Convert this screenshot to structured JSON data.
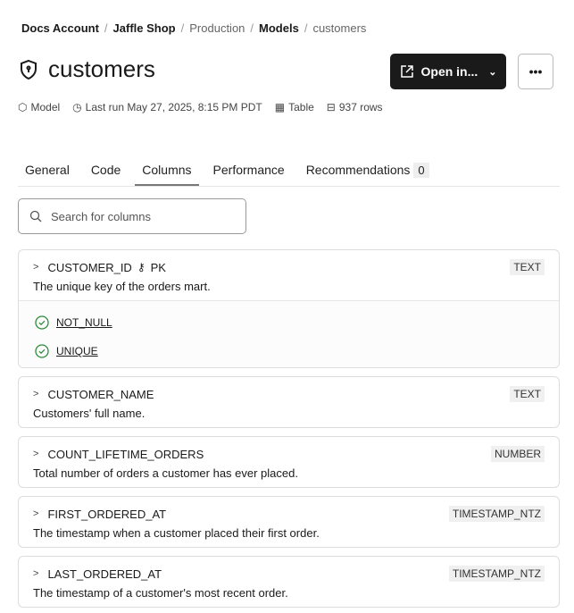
{
  "breadcrumb": [
    "Docs Account",
    "Jaffle Shop",
    "Production",
    "Models",
    "customers"
  ],
  "title": "customers",
  "open_button": "Open in...",
  "more_button": "•••",
  "meta": {
    "type": "Model",
    "last_run": "Last run May 27, 2025, 8:15 PM PDT",
    "materialization": "Table",
    "rows": "937 rows"
  },
  "tabs": [
    {
      "label": "General"
    },
    {
      "label": "Code"
    },
    {
      "label": "Columns",
      "active": true
    },
    {
      "label": "Performance"
    },
    {
      "label": "Recommendations",
      "badge": "0"
    }
  ],
  "search": {
    "placeholder": "Search for columns"
  },
  "columns": [
    {
      "name": "CUSTOMER_ID",
      "pk": "PK",
      "type": "TEXT",
      "description": "The unique key of the orders mart.",
      "tests": [
        "NOT_NULL",
        "UNIQUE"
      ]
    },
    {
      "name": "CUSTOMER_NAME",
      "type": "TEXT",
      "description": "Customers' full name."
    },
    {
      "name": "COUNT_LIFETIME_ORDERS",
      "type": "NUMBER",
      "description": "Total number of orders a customer has ever placed."
    },
    {
      "name": "FIRST_ORDERED_AT",
      "type": "TIMESTAMP_NTZ",
      "description": "The timestamp when a customer placed their first order."
    },
    {
      "name": "LAST_ORDERED_AT",
      "type": "TIMESTAMP_NTZ",
      "description": "The timestamp of a customer's most recent order."
    }
  ],
  "colors": {
    "primary_button": "#1a1a1a",
    "test_pass": "#2e8b3a"
  }
}
